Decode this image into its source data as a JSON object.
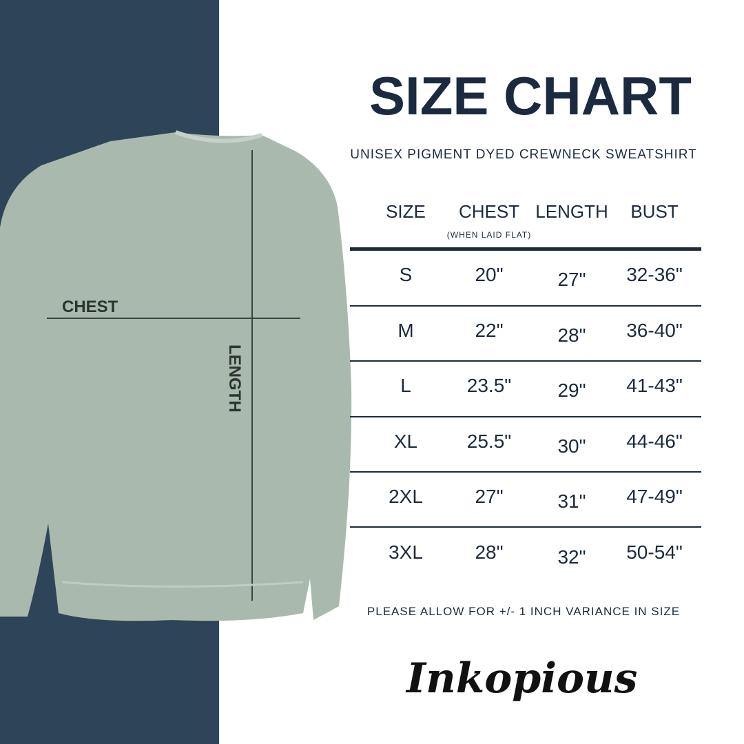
{
  "title": "SIZE CHART",
  "subtitle": "UNISEX PIGMENT DYED CREWNECK SWEATSHIRT",
  "headers": [
    "SIZE",
    "CHEST",
    "LENGTH",
    "BUST"
  ],
  "chest_note": "(WHEN LAID FLAT)",
  "rows": [
    [
      "S",
      "20\"",
      "27\"",
      "32-36\""
    ],
    [
      "M",
      "22\"",
      "28\"",
      "36-40\""
    ],
    [
      "L",
      "23.5\"",
      "29\"",
      "41-43\""
    ],
    [
      "XL",
      "25.5\"",
      "30\"",
      "44-46\""
    ],
    [
      "2XL",
      "27\"",
      "31\"",
      "47-49\""
    ],
    [
      "3XL",
      "28\"",
      "32\"",
      "50-54\""
    ]
  ],
  "variance_note": "PLEASE ALLOW FOR +/- 1 INCH VARIANCE IN SIZE",
  "logo": "Inkopious",
  "garment_labels": {
    "chest": "CHEST",
    "length": "LENGTH"
  },
  "colors": {
    "panel": "#2e4458",
    "garment": "#a9b9ae",
    "text": "#1b2a3e"
  }
}
